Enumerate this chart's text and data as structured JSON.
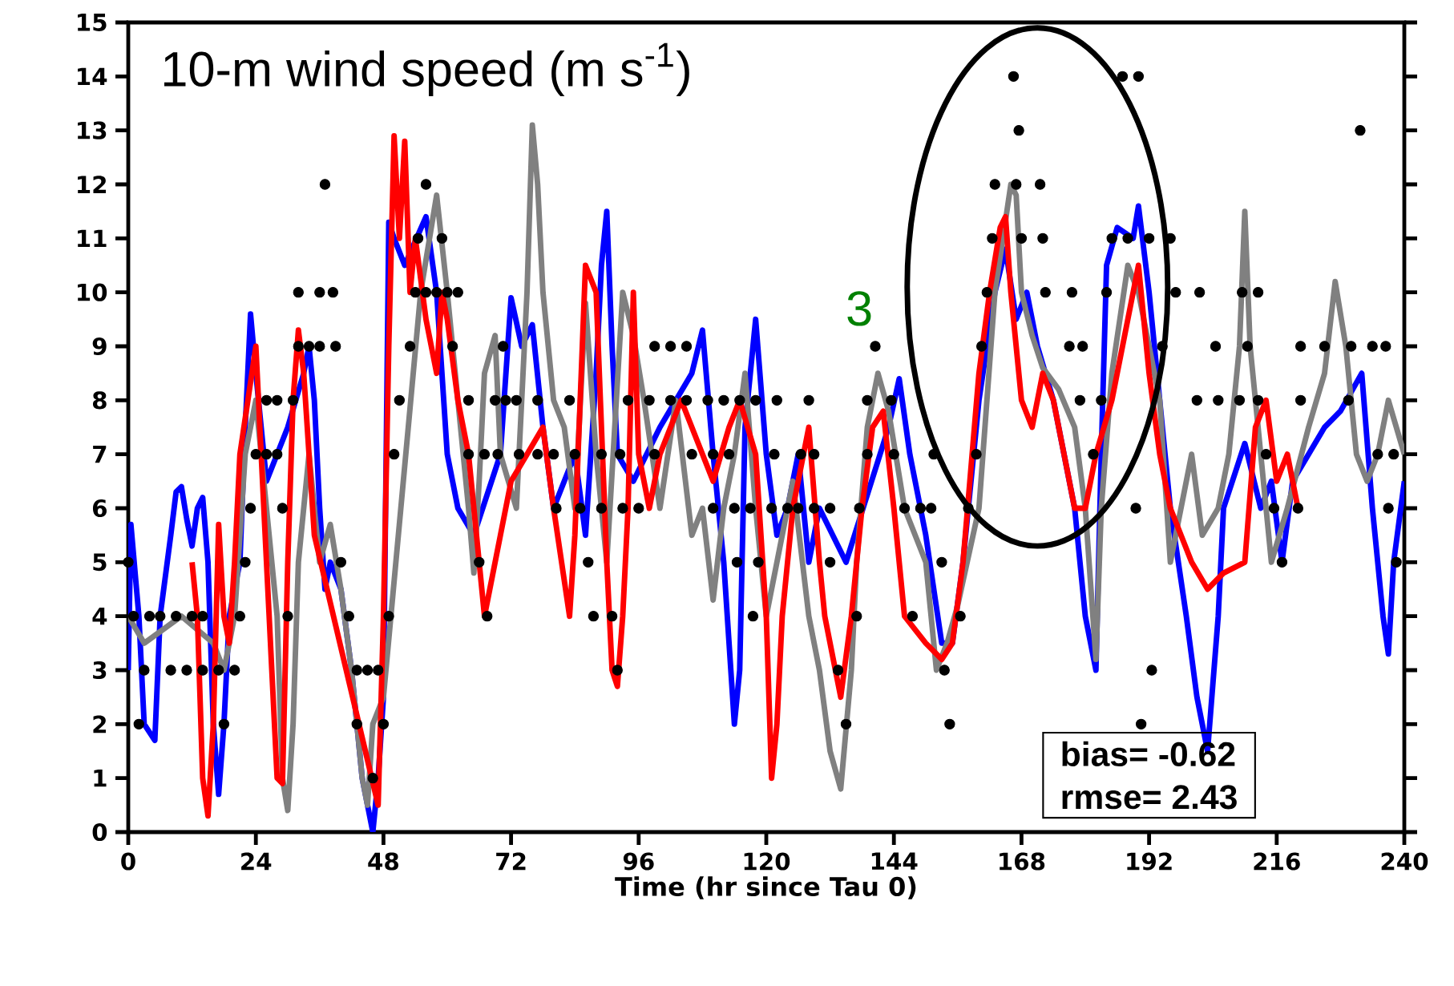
{
  "chart_data": {
    "type": "line",
    "title": "10-m wind speed (m s$^{-1}$)",
    "xlabel": "Time (hr since Tau 0)",
    "annotations": [
      "3",
      "bias= -0.62",
      "rmse= 2.43"
    ],
    "xlim": [
      0,
      240
    ],
    "xticks": [
      0,
      24,
      48,
      72,
      96,
      120,
      144,
      168,
      192,
      216,
      240
    ],
    "ylim": [
      0,
      15
    ],
    "yticks": [
      0,
      1,
      2,
      3,
      4,
      5,
      6,
      7,
      8,
      9,
      10,
      11,
      12,
      13,
      14,
      15
    ],
    "grid": false,
    "line_style": "solid",
    "series": [
      {
        "color": "#0000ff",
        "x": [
          0,
          0.5,
          2,
          3,
          5,
          6,
          8,
          9,
          10,
          11,
          12,
          13,
          14,
          15,
          16,
          17,
          18,
          19,
          21,
          22,
          23,
          24,
          26,
          30,
          33,
          34,
          35,
          36,
          37,
          38,
          40,
          42,
          44,
          46,
          47,
          48,
          49,
          50,
          52,
          56,
          58,
          60,
          62,
          65,
          70,
          72,
          74,
          76,
          78,
          80,
          84,
          86,
          88,
          89,
          90,
          91,
          92,
          95,
          100,
          106,
          108,
          110,
          112,
          114,
          115,
          116,
          118,
          120,
          122,
          124,
          126,
          128,
          130,
          135,
          143,
          145,
          147,
          150,
          153,
          155,
          157,
          160,
          163,
          165,
          167,
          169,
          171,
          174,
          178,
          180,
          182,
          183,
          184,
          186,
          189,
          190,
          192,
          194,
          196,
          199,
          201,
          203,
          205,
          206,
          210,
          213,
          215,
          217,
          219,
          222,
          225,
          228,
          232,
          234,
          236,
          237,
          238,
          240
        ],
        "values": [
          3,
          5.7,
          4,
          2,
          1.7,
          4,
          5.5,
          6.3,
          6.4,
          5.8,
          5.3,
          6,
          6.2,
          5,
          2,
          0.7,
          2,
          4,
          5,
          7.5,
          9.6,
          8.5,
          6.5,
          7.5,
          8.5,
          9,
          8,
          6,
          4.5,
          5,
          4.5,
          3,
          1,
          0,
          1,
          2.5,
          11.3,
          11,
          10.5,
          11.4,
          10,
          7,
          6,
          5.5,
          7,
          9.9,
          9,
          9.4,
          7.5,
          6,
          7,
          5.5,
          8.5,
          10.5,
          11.5,
          9,
          7,
          6.5,
          7.5,
          8.5,
          9.3,
          7,
          5,
          2,
          3,
          7.5,
          9.5,
          7,
          5.5,
          6,
          7,
          5,
          6,
          5,
          7.5,
          8.4,
          7,
          5.5,
          3.5,
          3.5,
          5,
          8,
          10,
          10.8,
          9.5,
          10,
          9,
          8,
          6,
          4,
          3,
          7,
          10.5,
          11.2,
          11,
          11.6,
          10,
          8,
          6,
          4,
          2.5,
          1.5,
          4,
          6,
          7.2,
          6,
          6.5,
          5,
          6.5,
          7,
          7.5,
          7.8,
          8.5,
          6,
          4,
          3.3,
          5,
          6.5
        ]
      },
      {
        "color": "#808080",
        "x": [
          0,
          3,
          10,
          16,
          18,
          20,
          22,
          24,
          26,
          28,
          29,
          30,
          31,
          32,
          34,
          35,
          36,
          38,
          40,
          42,
          44,
          45,
          46,
          48,
          55,
          58,
          60,
          62,
          64,
          65,
          66,
          67,
          69,
          70,
          73,
          75,
          76,
          77,
          78,
          80,
          82,
          84,
          86,
          88,
          90,
          93,
          95,
          97,
          100,
          103,
          106,
          108,
          110,
          112,
          114,
          116,
          118,
          120,
          122,
          125,
          128,
          130,
          132,
          134,
          136,
          137,
          139,
          141,
          143,
          146,
          150,
          152,
          154,
          156,
          160,
          163,
          166,
          167,
          168,
          170,
          172,
          175,
          178,
          180,
          182,
          183,
          185,
          188,
          190,
          192,
          194,
          196,
          198,
          200,
          202,
          205,
          207,
          209,
          210,
          211,
          213,
          215,
          218,
          222,
          225,
          227,
          229,
          231,
          233,
          235,
          237,
          240
        ],
        "values": [
          4,
          3.5,
          4,
          3.5,
          3,
          4,
          7,
          8,
          6,
          4,
          1,
          0.4,
          2,
          5,
          7,
          6,
          5,
          5.7,
          4.5,
          3,
          1,
          0.5,
          2,
          2.5,
          10,
          11.8,
          10,
          8,
          6,
          4.8,
          6.5,
          8.5,
          9.2,
          7,
          6,
          10,
          13.1,
          12,
          10,
          8,
          7.5,
          6,
          9.8,
          7,
          5,
          10,
          9.2,
          8,
          6,
          8,
          5.5,
          6,
          4.3,
          6,
          7,
          8.5,
          6,
          4,
          5,
          6.5,
          4,
          3,
          1.5,
          0.8,
          3,
          5,
          7.5,
          8.5,
          7.8,
          6,
          5,
          3,
          3.5,
          4.2,
          6,
          10,
          12,
          11.8,
          10,
          9.2,
          8.6,
          8.2,
          7.5,
          6,
          3.2,
          6,
          8.5,
          10.5,
          10,
          9,
          8,
          5,
          6,
          7,
          5.5,
          6,
          7,
          9,
          11.5,
          9,
          7,
          5,
          6,
          7.5,
          8.5,
          10.2,
          9,
          7,
          6.5,
          7,
          8,
          7
        ]
      },
      {
        "color": "#ff0000",
        "x": [
          12,
          13,
          14,
          15,
          16,
          17,
          18,
          19,
          20,
          21,
          24,
          25,
          27,
          28,
          29,
          30,
          31,
          32,
          33,
          34,
          35,
          47,
          48,
          49,
          50,
          51,
          52,
          53,
          54,
          56,
          58,
          59,
          60,
          62,
          64,
          66,
          67,
          68,
          70,
          72,
          75,
          78,
          80,
          83,
          84,
          86,
          88,
          90,
          91,
          92,
          93,
          94,
          95,
          96,
          98,
          100,
          104,
          108,
          110,
          113,
          115,
          118,
          120,
          121,
          122,
          123,
          125,
          127,
          128,
          130,
          131,
          133,
          134,
          136,
          138,
          140,
          142,
          144,
          146,
          150,
          153,
          155,
          157,
          160,
          162,
          164,
          165,
          166,
          168,
          170,
          172,
          174,
          176,
          178,
          180,
          182,
          185,
          188,
          190,
          192,
          194,
          196,
          198,
          200,
          203,
          206,
          210,
          212,
          214,
          216,
          218,
          220
        ],
        "values": [
          5,
          4,
          1,
          0.3,
          2,
          5.7,
          4,
          3.5,
          5,
          7,
          9,
          7,
          3,
          1,
          0.9,
          5,
          8,
          9.3,
          8.5,
          7,
          5.5,
          0.5,
          4,
          9,
          12.9,
          11,
          12.8,
          10,
          11,
          9.5,
          8.5,
          10,
          9.5,
          8,
          7,
          5,
          4,
          4.5,
          5.5,
          6.5,
          7,
          7.5,
          6,
          4,
          5.5,
          10.5,
          10,
          5,
          3,
          2.7,
          4,
          6,
          10,
          7,
          6,
          7,
          8,
          7,
          6.5,
          7.5,
          8,
          7,
          4,
          1,
          2,
          4,
          6,
          7,
          7.5,
          5,
          4,
          3,
          2.5,
          4,
          6,
          7.5,
          7.8,
          6,
          4,
          3.5,
          3.2,
          3.5,
          5,
          8.5,
          10,
          11.2,
          11.4,
          10,
          8,
          7.5,
          8.5,
          8,
          7,
          6,
          6,
          7,
          8,
          9.5,
          10.5,
          8.5,
          7,
          6,
          5.5,
          5,
          4.5,
          4.8,
          5,
          7.5,
          8,
          6.5,
          7,
          6
        ]
      },
      {
        "type": "scatter",
        "color": "#000000",
        "x": [
          0,
          1,
          4,
          6,
          9,
          12,
          14,
          21,
          3,
          8,
          11,
          14,
          17,
          20,
          2,
          18,
          22,
          23,
          29,
          24,
          26,
          28,
          30,
          40,
          41.5,
          43,
          45,
          47,
          43,
          48,
          46,
          50,
          49,
          26,
          28,
          31,
          32,
          34,
          36,
          32,
          36,
          38.5,
          37,
          39,
          51,
          53,
          56,
          54.5,
          59,
          54,
          56,
          58,
          60,
          62,
          61,
          64,
          69,
          71,
          73,
          77,
          70.5,
          83,
          99,
          102,
          105,
          94,
          98,
          102,
          105,
          109,
          64,
          67,
          69.5,
          66,
          67.5,
          73.5,
          77,
          80,
          84,
          80.5,
          85,
          89,
          93,
          96,
          89,
          92.5,
          99,
          86.5,
          87.5,
          91,
          92,
          106,
          110,
          113,
          110,
          114,
          121.5,
          126.5,
          129,
          139,
          144,
          151.5,
          159.5,
          181.5,
          214,
          235,
          238,
          117,
          121,
          124,
          126,
          129,
          132,
          137.5,
          146,
          149,
          151,
          158,
          189.5,
          215.5,
          220,
          237,
          114.5,
          118.5,
          132,
          153,
          217,
          238.5,
          117.5,
          137,
          147.5,
          156.5,
          133.5,
          153.5,
          192.5,
          135,
          154.5,
          190.5,
          166.5,
          187,
          190,
          167.5,
          231.7,
          163,
          167,
          171.5,
          162.5,
          168,
          172,
          185,
          188,
          192,
          196,
          161.5,
          172.5,
          177.5,
          184,
          197,
          201.5,
          209.5,
          212.5,
          140.5,
          160.5,
          177,
          179.5,
          194.5,
          204.5,
          210.5,
          220.5,
          225,
          230,
          234,
          236.5,
          112,
          115,
          118,
          122,
          128,
          139,
          143.5,
          179,
          183,
          201,
          205,
          209,
          212.5,
          220.5,
          229.5
        ],
        "values": [
          5,
          4,
          4,
          4,
          4,
          4,
          4,
          4,
          3,
          3,
          3,
          3,
          3,
          3,
          2,
          2,
          5,
          6,
          6,
          7,
          7,
          7,
          4,
          5,
          4,
          3,
          3,
          3,
          2,
          2,
          1,
          7,
          4,
          8,
          8,
          8,
          9,
          9,
          9,
          10,
          10,
          10,
          12,
          9,
          8,
          9,
          12,
          11,
          11,
          10,
          10,
          10,
          10,
          10,
          9,
          8,
          8,
          8,
          8,
          8,
          9,
          8,
          9,
          9,
          9,
          8,
          8,
          8,
          8,
          8,
          7,
          7,
          7,
          5,
          4,
          7,
          7,
          7,
          7,
          6,
          6,
          6,
          6,
          6,
          7,
          7,
          7,
          5,
          4,
          4,
          3,
          7,
          7,
          7,
          6,
          6,
          7,
          7,
          7,
          7,
          7,
          7,
          7,
          7,
          7,
          7,
          7,
          6,
          6,
          6,
          6,
          6,
          6,
          6,
          6,
          6,
          6,
          6,
          6,
          6,
          6,
          6,
          5,
          5,
          5,
          5,
          5,
          5,
          4,
          4,
          4,
          4,
          3,
          3,
          3,
          2,
          2,
          2,
          14,
          14,
          14,
          13,
          13,
          12,
          12,
          12,
          11,
          11,
          11,
          11,
          11,
          11,
          11,
          10,
          10,
          10,
          10,
          10,
          10,
          10,
          10,
          9,
          9,
          9,
          9,
          9,
          9,
          9,
          9,
          9,
          9,
          9,
          9,
          8,
          8,
          8,
          8,
          8,
          8,
          8,
          8,
          8,
          8,
          8,
          8,
          8,
          8,
          8
        ]
      }
    ]
  }
}
